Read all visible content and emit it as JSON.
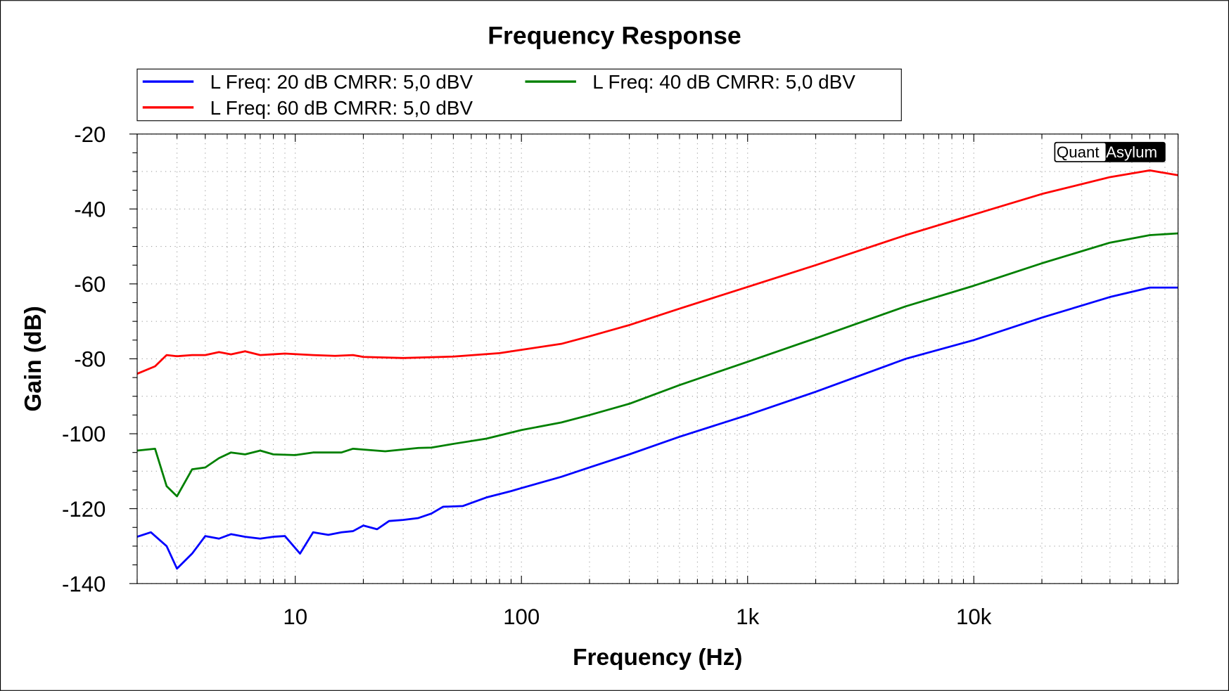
{
  "chart_data": {
    "type": "line",
    "title": "Frequency Response",
    "xlabel": "Frequency (Hz)",
    "ylabel": "Gain (dB)",
    "xscale": "log",
    "xlim": [
      2,
      80000
    ],
    "ylim": [
      -140,
      -20
    ],
    "xticks": [
      {
        "v": 10,
        "label": "10"
      },
      {
        "v": 100,
        "label": "100"
      },
      {
        "v": 1000,
        "label": "1k"
      },
      {
        "v": 10000,
        "label": "10k"
      }
    ],
    "yticks": [
      {
        "v": -20,
        "label": "-20"
      },
      {
        "v": -40,
        "label": "-40"
      },
      {
        "v": -60,
        "label": "-60"
      },
      {
        "v": -80,
        "label": "-80"
      },
      {
        "v": -100,
        "label": "-100"
      },
      {
        "v": -120,
        "label": "-120"
      },
      {
        "v": -140,
        "label": "-140"
      }
    ],
    "grid": true,
    "legend_position": "top",
    "watermark": {
      "part1": "Quant",
      "part2": "Asylum"
    },
    "series": [
      {
        "name": "L Freq: 20 dB CMRR: 5,0 dBV",
        "color": "#0000ff",
        "points": [
          [
            2,
            -127.5
          ],
          [
            2.3,
            -126.3
          ],
          [
            2.7,
            -130
          ],
          [
            3,
            -136
          ],
          [
            3.5,
            -132
          ],
          [
            4,
            -127.3
          ],
          [
            4.6,
            -128
          ],
          [
            5.2,
            -126.8
          ],
          [
            6,
            -127.5
          ],
          [
            7,
            -128
          ],
          [
            8,
            -127.5
          ],
          [
            9,
            -127.3
          ],
          [
            10.5,
            -132
          ],
          [
            12,
            -126.3
          ],
          [
            14,
            -127
          ],
          [
            16,
            -126.3
          ],
          [
            18,
            -126
          ],
          [
            20,
            -124.5
          ],
          [
            23,
            -125.5
          ],
          [
            26,
            -123.3
          ],
          [
            30,
            -123
          ],
          [
            35,
            -122.5
          ],
          [
            40,
            -121.3
          ],
          [
            45,
            -119.5
          ],
          [
            55,
            -119.3
          ],
          [
            70,
            -117
          ],
          [
            90,
            -115.3
          ],
          [
            100,
            -114.5
          ],
          [
            150,
            -111.5
          ],
          [
            200,
            -109
          ],
          [
            300,
            -105.5
          ],
          [
            500,
            -100.8
          ],
          [
            1000,
            -95
          ],
          [
            2000,
            -88.8
          ],
          [
            5000,
            -80
          ],
          [
            10000,
            -75
          ],
          [
            20000,
            -69
          ],
          [
            40000,
            -63.5
          ],
          [
            60000,
            -61
          ],
          [
            80000,
            -61
          ]
        ]
      },
      {
        "name": "L Freq: 40 dB CMRR: 5,0 dBV",
        "color": "#008000",
        "points": [
          [
            2,
            -104.5
          ],
          [
            2.4,
            -104
          ],
          [
            2.7,
            -114
          ],
          [
            3,
            -116.7
          ],
          [
            3.5,
            -109.5
          ],
          [
            4,
            -109
          ],
          [
            4.6,
            -106.5
          ],
          [
            5.2,
            -105
          ],
          [
            6,
            -105.5
          ],
          [
            7,
            -104.5
          ],
          [
            8,
            -105.5
          ],
          [
            10,
            -105.7
          ],
          [
            12,
            -105
          ],
          [
            16,
            -105
          ],
          [
            18,
            -104
          ],
          [
            25,
            -104.7
          ],
          [
            35,
            -103.8
          ],
          [
            40,
            -103.7
          ],
          [
            50,
            -102.7
          ],
          [
            70,
            -101.3
          ],
          [
            100,
            -99
          ],
          [
            150,
            -97
          ],
          [
            200,
            -95
          ],
          [
            300,
            -92
          ],
          [
            500,
            -87
          ],
          [
            1000,
            -80.8
          ],
          [
            2000,
            -74.5
          ],
          [
            5000,
            -66
          ],
          [
            10000,
            -60.5
          ],
          [
            20000,
            -54.5
          ],
          [
            40000,
            -49
          ],
          [
            60000,
            -47
          ],
          [
            80000,
            -46.5
          ]
        ]
      },
      {
        "name": "L Freq: 60 dB CMRR: 5,0 dBV",
        "color": "#ff0000",
        "points": [
          [
            2,
            -84
          ],
          [
            2.4,
            -82
          ],
          [
            2.7,
            -79
          ],
          [
            3,
            -79.3
          ],
          [
            3.5,
            -79
          ],
          [
            4,
            -79
          ],
          [
            4.6,
            -78.2
          ],
          [
            5.2,
            -78.8
          ],
          [
            6,
            -78
          ],
          [
            7,
            -79
          ],
          [
            9,
            -78.6
          ],
          [
            12,
            -79
          ],
          [
            15,
            -79.2
          ],
          [
            18,
            -79
          ],
          [
            20,
            -79.5
          ],
          [
            30,
            -79.8
          ],
          [
            50,
            -79.4
          ],
          [
            80,
            -78.5
          ],
          [
            100,
            -77.6
          ],
          [
            150,
            -76
          ],
          [
            200,
            -74
          ],
          [
            300,
            -71
          ],
          [
            500,
            -66.6
          ],
          [
            1000,
            -60.8
          ],
          [
            2000,
            -55
          ],
          [
            5000,
            -47
          ],
          [
            10000,
            -41.5
          ],
          [
            20000,
            -36
          ],
          [
            40000,
            -31.5
          ],
          [
            60000,
            -29.7
          ],
          [
            80000,
            -31
          ]
        ]
      }
    ]
  }
}
